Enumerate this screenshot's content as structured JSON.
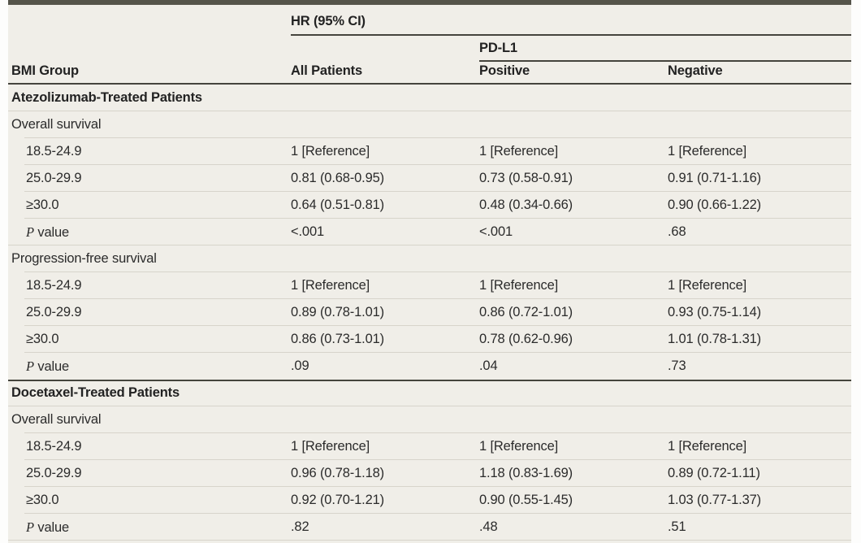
{
  "table": {
    "colors": {
      "table_background": "#f0eee8",
      "dark_rule": "#45443d",
      "light_rule": "#d7d4cb",
      "top_bar": "#55544a",
      "text": "#2b2b2b"
    },
    "header": {
      "group_header": "HR (95% CI)",
      "subgroup_header": "PD-L1",
      "columns": [
        "BMI Group",
        "All Patients",
        "Positive",
        "Negative"
      ]
    },
    "sections": [
      {
        "title": "Atezolizumab-Treated Patients",
        "subsections": [
          {
            "title": "Overall survival",
            "rows": [
              {
                "label": "18.5-24.9",
                "values": [
                  "1 [Reference]",
                  "1 [Reference]",
                  "1 [Reference]"
                ]
              },
              {
                "label": "25.0-29.9",
                "values": [
                  "0.81 (0.68-0.95)",
                  "0.73 (0.58-0.91)",
                  "0.91 (0.71-1.16)"
                ]
              },
              {
                "label": "≥30.0",
                "values": [
                  "0.64 (0.51-0.81)",
                  "0.48 (0.34-0.66)",
                  "0.90 (0.66-1.22)"
                ]
              },
              {
                "label": "P value",
                "italic_prefix": "P",
                "values": [
                  "<.001",
                  "<.001",
                  ".68"
                ]
              }
            ]
          },
          {
            "title": "Progression-free survival",
            "rows": [
              {
                "label": "18.5-24.9",
                "values": [
                  "1 [Reference]",
                  "1 [Reference]",
                  "1 [Reference]"
                ]
              },
              {
                "label": "25.0-29.9",
                "values": [
                  "0.89 (0.78-1.01)",
                  "0.86 (0.72-1.01)",
                  "0.93 (0.75-1.14)"
                ]
              },
              {
                "label": "≥30.0",
                "values": [
                  "0.86 (0.73-1.01)",
                  "0.78 (0.62-0.96)",
                  "1.01 (0.78-1.31)"
                ]
              },
              {
                "label": "P value",
                "italic_prefix": "P",
                "values": [
                  ".09",
                  ".04",
                  ".73"
                ]
              }
            ]
          }
        ]
      },
      {
        "title": "Docetaxel-Treated Patients",
        "subsections": [
          {
            "title": "Overall survival",
            "rows": [
              {
                "label": "18.5-24.9",
                "values": [
                  "1 [Reference]",
                  "1 [Reference]",
                  "1 [Reference]"
                ]
              },
              {
                "label": "25.0-29.9",
                "values": [
                  "0.96 (0.78-1.18)",
                  "1.18 (0.83-1.69)",
                  "0.89 (0.72-1.11)"
                ]
              },
              {
                "label": "≥30.0",
                "values": [
                  "0.92 (0.70-1.21)",
                  "0.90 (0.55-1.45)",
                  "1.03 (0.77-1.37)"
                ]
              },
              {
                "label": "P value",
                "italic_prefix": "P",
                "values": [
                  ".82",
                  ".48",
                  ".51"
                ]
              }
            ]
          }
        ]
      }
    ]
  }
}
